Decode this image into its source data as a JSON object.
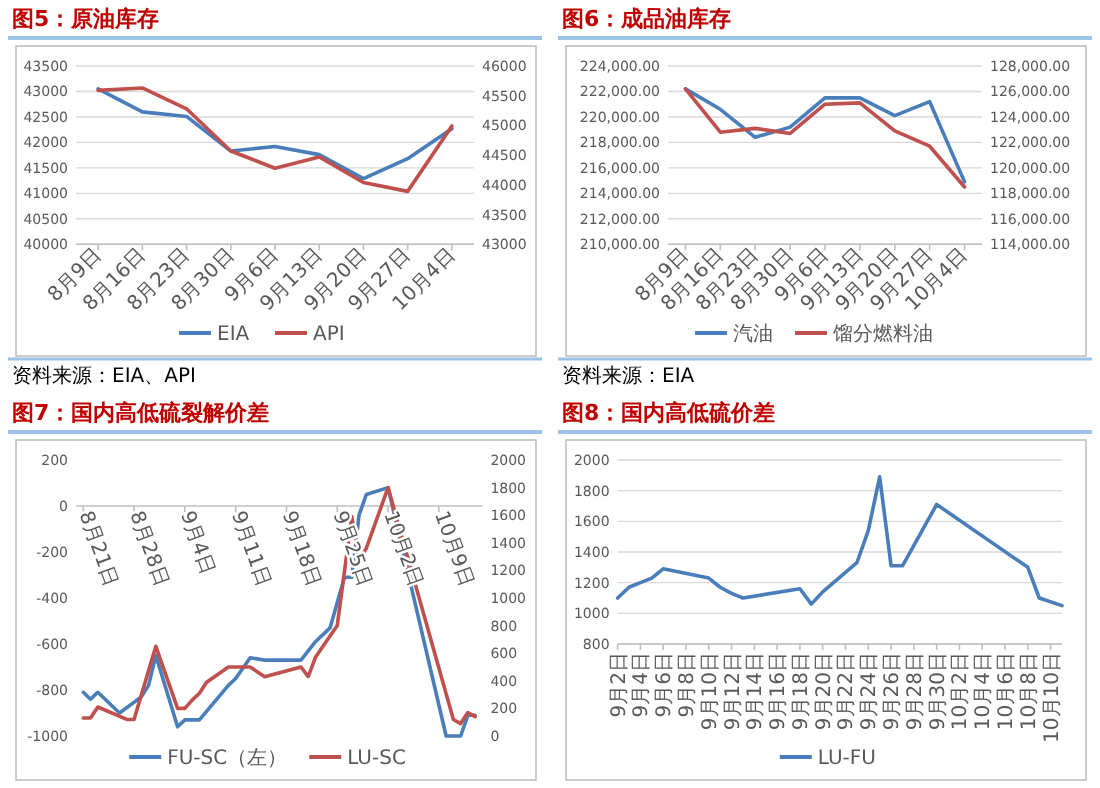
{
  "chart_data": [
    {
      "type": "line",
      "title": "图5：原油库存",
      "annotations": [
        "资料来源：EIA、API"
      ],
      "categories": [
        "8月9日",
        "8月16日",
        "8月23日",
        "8月30日",
        "9月6日",
        "9月13日",
        "9月20日",
        "9月27日",
        "10月4日"
      ],
      "series": [
        {
          "name": "EIA",
          "color": "#4a7ebb",
          "values": [
            43050,
            42600,
            42510,
            41830,
            41920,
            41760,
            41290,
            41680,
            42270
          ]
        },
        {
          "name": "API",
          "color": "#c0504d",
          "axis": "y2",
          "values": [
            45590,
            45630,
            45280,
            44570,
            44280,
            44470,
            44040,
            43890,
            44990
          ]
        }
      ],
      "ylim": [
        40000,
        43500
      ],
      "yticks": [
        40000,
        40500,
        41000,
        41500,
        42000,
        42500,
        43000,
        43500
      ],
      "y2lim": [
        43000,
        46000
      ],
      "y2ticks": [
        43000,
        43500,
        44000,
        44500,
        45000,
        45500,
        46000
      ],
      "grid": "y",
      "legend": "bottom"
    },
    {
      "type": "line",
      "title": "图6：成品油库存",
      "annotations": [
        "资料来源：EIA"
      ],
      "categories": [
        "8月9日",
        "8月16日",
        "8月23日",
        "8月30日",
        "9月6日",
        "9月13日",
        "9月20日",
        "9月27日",
        "10月4日"
      ],
      "series": [
        {
          "name": "汽油",
          "color": "#4a7ebb",
          "values": [
            222200,
            220600,
            218400,
            219200,
            221500,
            221500,
            220100,
            221200,
            214900
          ]
        },
        {
          "name": "馏分燃料油",
          "color": "#c0504d",
          "axis": "y2",
          "values": [
            126200,
            122800,
            123100,
            122700,
            125000,
            125100,
            122900,
            121700,
            118500
          ]
        }
      ],
      "ylim": [
        210000,
        224000
      ],
      "yticks": [
        {
          "value": 210000,
          "label": "210,000.00"
        },
        {
          "value": 212000,
          "label": "212,000.00"
        },
        {
          "value": 214000,
          "label": "214,000.00"
        },
        {
          "value": 216000,
          "label": "216,000.00"
        },
        {
          "value": 218000,
          "label": "218,000.00"
        },
        {
          "value": 220000,
          "label": "220,000.00"
        },
        {
          "value": 222000,
          "label": "222,000.00"
        },
        {
          "value": 224000,
          "label": "224,000.00"
        }
      ],
      "y2lim": [
        114000,
        128000
      ],
      "y2ticks": [
        {
          "value": 114000,
          "label": "114,000.00"
        },
        {
          "value": 116000,
          "label": "116,000.00"
        },
        {
          "value": 118000,
          "label": "118,000.00"
        },
        {
          "value": 120000,
          "label": "120,000.00"
        },
        {
          "value": 122000,
          "label": "122,000.00"
        },
        {
          "value": 124000,
          "label": "124,000.00"
        },
        {
          "value": 126000,
          "label": "126,000.00"
        },
        {
          "value": 128000,
          "label": "128,000.00"
        }
      ],
      "grid": "y",
      "legend": "bottom"
    },
    {
      "type": "line",
      "title": "图7：国内高低硫裂解价差",
      "xlim": [
        "--08-20",
        "--10-15"
      ],
      "xticks": [
        {
          "value": "--08-21",
          "label": "8月21日"
        },
        {
          "value": "--08-28",
          "label": "8月28日"
        },
        {
          "value": "--09-04",
          "label": "9月4日"
        },
        {
          "value": "--09-11",
          "label": "9月11日"
        },
        {
          "value": "--09-18",
          "label": "9月18日"
        },
        {
          "value": "--09-25",
          "label": "9月25日"
        },
        {
          "value": "--10-02",
          "label": "10月2日"
        },
        {
          "value": "--10-09",
          "label": "10月9日"
        }
      ],
      "series": [
        {
          "name": "FU-SC（左）",
          "color": "#4a7ebb",
          "x": [
            "--08-21",
            "--08-22",
            "--08-23",
            "--08-26",
            "--08-29",
            "--08-30",
            "--08-31",
            "--09-03",
            "--09-04",
            "--09-06",
            "--09-10",
            "--09-11",
            "--09-13",
            "--09-15",
            "--09-20",
            "--09-22",
            "--09-24",
            "--09-26",
            "--09-27",
            "--09-28",
            "--09-29",
            "--10-02",
            "--10-10",
            "--10-12",
            "--10-13",
            "--10-14"
          ],
          "values": [
            -810,
            -840,
            -810,
            -900,
            -830,
            -780,
            -650,
            -960,
            -930,
            -930,
            -780,
            -750,
            -660,
            -670,
            -670,
            -590,
            -530,
            -310,
            -310,
            -40,
            50,
            80,
            -1000,
            -1000,
            -910,
            -910
          ]
        },
        {
          "name": "LU-SC",
          "color": "#c0504d",
          "axis": "y2",
          "x": [
            "--08-21",
            "--08-22",
            "--08-23",
            "--08-27",
            "--08-28",
            "--08-31",
            "--09-03",
            "--09-04",
            "--09-05",
            "--09-06",
            "--09-07",
            "--09-10",
            "--09-13",
            "--09-15",
            "--09-20",
            "--09-21",
            "--09-22",
            "--09-25",
            "--09-27",
            "--09-28",
            "--09-29",
            "--10-02",
            "--10-11",
            "--10-12",
            "--10-13",
            "--10-14"
          ],
          "values": [
            130,
            130,
            210,
            120,
            120,
            650,
            200,
            200,
            260,
            310,
            390,
            500,
            500,
            430,
            500,
            430,
            570,
            800,
            1590,
            1270,
            1360,
            1800,
            120,
            90,
            170,
            140
          ]
        }
      ],
      "ylim": [
        -1000,
        200
      ],
      "yticks": [
        -1000,
        -800,
        -600,
        -400,
        -200,
        0,
        200
      ],
      "y2lim": [
        0,
        2000
      ],
      "y2ticks": [
        0,
        200,
        400,
        600,
        800,
        1000,
        1200,
        1400,
        1600,
        1800,
        2000
      ],
      "legend": "bottom"
    },
    {
      "type": "line",
      "title": "图8：国内高低硫价差",
      "xlim": [
        "--09-02",
        "--10-11"
      ],
      "xticks": [
        {
          "value": "--09-02",
          "label": "9月2日"
        },
        {
          "value": "--09-04",
          "label": "9月4日"
        },
        {
          "value": "--09-06",
          "label": "9月6日"
        },
        {
          "value": "--09-08",
          "label": "9月8日"
        },
        {
          "value": "--09-10",
          "label": "9月10日"
        },
        {
          "value": "--09-12",
          "label": "9月12日"
        },
        {
          "value": "--09-14",
          "label": "9月14日"
        },
        {
          "value": "--09-16",
          "label": "9月16日"
        },
        {
          "value": "--09-18",
          "label": "9月18日"
        },
        {
          "value": "--09-20",
          "label": "9月20日"
        },
        {
          "value": "--09-22",
          "label": "9月22日"
        },
        {
          "value": "--09-24",
          "label": "9月24日"
        },
        {
          "value": "--09-26",
          "label": "9月26日"
        },
        {
          "value": "--09-28",
          "label": "9月28日"
        },
        {
          "value": "--09-30",
          "label": "9月30日"
        },
        {
          "value": "--10-02",
          "label": "10月2日"
        },
        {
          "value": "--10-04",
          "label": "10月4日"
        },
        {
          "value": "--10-06",
          "label": "10月6日"
        },
        {
          "value": "--10-08",
          "label": "10月8日"
        },
        {
          "value": "--10-10",
          "label": "10月10日"
        }
      ],
      "series": [
        {
          "name": "LU-FU",
          "color": "#4a7ebb",
          "x": [
            "--09-02",
            "--09-03",
            "--09-04",
            "--09-05",
            "--09-06",
            "--09-10",
            "--09-11",
            "--09-12",
            "--09-13",
            "--09-18",
            "--09-19",
            "--09-20",
            "--09-23",
            "--09-24",
            "--09-25",
            "--09-26",
            "--09-27",
            "--09-30",
            "--10-08",
            "--10-09",
            "--10-11"
          ],
          "values": [
            1100,
            1170,
            1200,
            1230,
            1290,
            1230,
            1170,
            1130,
            1100,
            1160,
            1060,
            1140,
            1330,
            1540,
            1890,
            1310,
            1310,
            1710,
            1300,
            1100,
            1050
          ]
        }
      ],
      "ylim": [
        800,
        2000
      ],
      "yticks": [
        800,
        1000,
        1200,
        1400,
        1600,
        1800,
        2000
      ],
      "grid": "y",
      "legend": "bottom"
    }
  ]
}
